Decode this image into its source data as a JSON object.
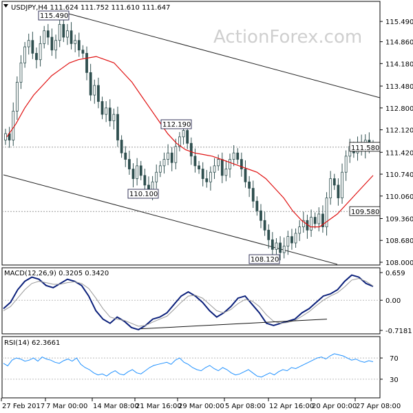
{
  "chart_data": [
    {
      "type": "candlestick",
      "title": "USDJPY,H4  111.624 111.752 111.610 111.647",
      "watermark": "ActionForex.com",
      "ylim": [
        108.0,
        115.9
      ],
      "yticks": [
        "115.490",
        "114.860",
        "114.180",
        "113.480",
        "112.800",
        "112.120",
        "111.420",
        "110.740",
        "110.060",
        "109.360",
        "108.680",
        "108.000"
      ],
      "ytick_values": [
        115.49,
        114.86,
        114.18,
        113.48,
        112.8,
        112.12,
        111.42,
        110.74,
        110.06,
        109.36,
        108.68,
        108.0
      ],
      "x_tick_labels": [
        "27 Feb 2017",
        "7 Mar 00:00",
        "14 Mar 08:00",
        "21 Mar 16:00",
        "29 Mar 00:00",
        "5 Apr 08:00",
        "12 Apr 16:00",
        "20 Apr 00:00",
        "27 Apr 08:00"
      ],
      "price_tags": [
        {
          "label": "111.580",
          "value": 111.58
        },
        {
          "label": "109.580",
          "value": 109.58
        }
      ],
      "annotations": [
        {
          "label": "115.490",
          "value": 115.49
        },
        {
          "label": "112.190",
          "value": 112.19
        },
        {
          "label": "110.100",
          "value": 110.1
        },
        {
          "label": "108.120",
          "value": 108.12
        }
      ],
      "horizontal_lines": [
        111.58,
        109.58
      ],
      "close_series_approx": [
        112.0,
        111.8,
        112.7,
        113.6,
        114.2,
        114.7,
        114.9,
        114.5,
        114.3,
        114.8,
        115.2,
        115.0,
        114.6,
        114.9,
        115.4,
        115.0,
        115.2,
        114.8,
        114.9,
        114.6,
        114.5,
        113.9,
        113.2,
        113.5,
        113.0,
        112.6,
        112.8,
        112.4,
        112.6,
        111.8,
        111.4,
        111.2,
        110.9,
        110.6,
        111.0,
        110.7,
        110.4,
        110.2,
        110.5,
        110.8,
        111.0,
        111.2,
        111.4,
        111.1,
        111.6,
        111.9,
        112.1,
        111.7,
        111.3,
        111.0,
        110.9,
        110.6,
        110.5,
        110.8,
        111.0,
        111.2,
        110.7,
        110.9,
        111.2,
        111.4,
        111.2,
        110.9,
        110.5,
        110.3,
        109.9,
        109.6,
        109.3,
        109.0,
        108.7,
        108.4,
        108.6,
        108.3,
        108.5,
        108.8,
        108.6,
        108.9,
        109.1,
        109.3,
        109.0,
        109.4,
        109.2,
        109.5,
        109.1,
        110.0,
        110.6,
        110.4,
        110.0,
        110.8,
        111.3,
        111.6,
        111.4,
        111.7,
        111.5,
        111.8,
        111.6,
        111.65
      ],
      "moving_average_approx": [
        111.9,
        112.3,
        112.8,
        113.2,
        113.5,
        113.8,
        114.0,
        114.2,
        114.3,
        114.35,
        114.4,
        114.3,
        114.2,
        113.9,
        113.6,
        113.2,
        112.8,
        112.4,
        112.0,
        111.7,
        111.5,
        111.4,
        111.35,
        111.3,
        111.2,
        111.1,
        111.0,
        110.9,
        110.8,
        110.6,
        110.3,
        110.0,
        109.6,
        109.3,
        109.1,
        109.1,
        109.3,
        109.5,
        109.8,
        110.1,
        110.4,
        110.7
      ]
    },
    {
      "type": "line",
      "title": "MACD(12,26,9) 0.3205 0.3420",
      "ylim": [
        -0.7181,
        0.659
      ],
      "yticks": [
        "0.659",
        "0.00",
        "-0.7181"
      ],
      "ytick_values": [
        0.659,
        0.0,
        -0.7181
      ],
      "series": [
        {
          "name": "MACD",
          "values": [
            -0.2,
            -0.05,
            0.25,
            0.45,
            0.55,
            0.5,
            0.35,
            0.3,
            0.4,
            0.5,
            0.45,
            0.35,
            0.1,
            -0.25,
            -0.45,
            -0.55,
            -0.4,
            -0.5,
            -0.65,
            -0.7,
            -0.6,
            -0.45,
            -0.4,
            -0.3,
            -0.1,
            0.1,
            0.2,
            0.1,
            -0.05,
            -0.25,
            -0.4,
            -0.3,
            -0.15,
            0.05,
            0.1,
            -0.1,
            -0.3,
            -0.55,
            -0.6,
            -0.55,
            -0.5,
            -0.45,
            -0.3,
            -0.2,
            -0.05,
            0.1,
            0.15,
            0.25,
            0.45,
            0.6,
            0.55,
            0.4,
            0.33
          ]
        },
        {
          "name": "Signal",
          "values": [
            -0.25,
            -0.15,
            0.05,
            0.25,
            0.4,
            0.45,
            0.42,
            0.38,
            0.38,
            0.42,
            0.44,
            0.4,
            0.28,
            0.05,
            -0.2,
            -0.4,
            -0.45,
            -0.48,
            -0.55,
            -0.62,
            -0.6,
            -0.52,
            -0.45,
            -0.38,
            -0.22,
            -0.05,
            0.1,
            0.12,
            0.05,
            -0.1,
            -0.25,
            -0.3,
            -0.22,
            -0.08,
            0.02,
            -0.02,
            -0.15,
            -0.35,
            -0.5,
            -0.55,
            -0.53,
            -0.48,
            -0.38,
            -0.27,
            -0.13,
            0.0,
            0.1,
            0.18,
            0.32,
            0.48,
            0.52,
            0.45,
            0.34
          ]
        }
      ],
      "trendline": [
        -0.68,
        -0.45
      ]
    },
    {
      "type": "line",
      "title": "RSI(14) 62.3661",
      "ylim": [
        0,
        100
      ],
      "yticks": [
        "70",
        "30"
      ],
      "ytick_values": [
        70,
        30
      ],
      "series": [
        {
          "name": "RSI",
          "values": [
            60,
            55,
            66,
            70,
            68,
            64,
            66,
            70,
            64,
            72,
            68,
            66,
            62,
            60,
            65,
            68,
            64,
            70,
            58,
            52,
            48,
            42,
            38,
            40,
            36,
            42,
            46,
            40,
            38,
            44,
            48,
            42,
            40,
            46,
            52,
            56,
            58,
            60,
            62,
            58,
            66,
            70,
            62,
            58,
            52,
            48,
            46,
            52,
            56,
            50,
            46,
            52,
            48,
            42,
            38,
            40,
            44,
            48,
            42,
            36,
            34,
            38,
            42,
            38,
            44,
            48,
            46,
            52,
            50,
            54,
            58,
            62,
            66,
            70,
            72,
            68,
            74,
            78,
            76,
            74,
            70,
            66,
            68,
            64,
            62,
            65,
            63
          ]
        }
      ]
    }
  ]
}
